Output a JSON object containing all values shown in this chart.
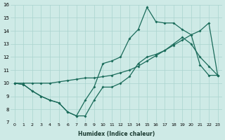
{
  "xlabel": "Humidex (Indice chaleur)",
  "background_color": "#ceeae6",
  "grid_color": "#aad4ce",
  "line_color": "#1a6b5a",
  "xlim": [
    -0.5,
    23.5
  ],
  "ylim": [
    7,
    16
  ],
  "xticks": [
    0,
    1,
    2,
    3,
    4,
    5,
    6,
    7,
    8,
    9,
    10,
    11,
    12,
    13,
    14,
    15,
    16,
    17,
    18,
    19,
    20,
    21,
    22,
    23
  ],
  "yticks": [
    7,
    8,
    9,
    10,
    11,
    12,
    13,
    14,
    15,
    16
  ],
  "line1_x": [
    0,
    1,
    2,
    3,
    4,
    5,
    6,
    7,
    8,
    9,
    10,
    11,
    12,
    13,
    14,
    15,
    16,
    17,
    18,
    19,
    20,
    21,
    22,
    23
  ],
  "line1_y": [
    10.0,
    9.9,
    9.4,
    9.0,
    8.7,
    8.5,
    7.8,
    7.5,
    7.5,
    8.7,
    9.7,
    9.7,
    10.0,
    10.5,
    11.5,
    12.0,
    12.2,
    12.5,
    13.0,
    13.5,
    13.0,
    12.0,
    11.3,
    10.6
  ],
  "line2_x": [
    0,
    1,
    2,
    3,
    4,
    5,
    6,
    7,
    8,
    9,
    10,
    11,
    12,
    13,
    14,
    15,
    16,
    17,
    18,
    19,
    20,
    21,
    22,
    23
  ],
  "line2_y": [
    10.0,
    10.0,
    10.0,
    10.0,
    10.0,
    10.1,
    10.2,
    10.3,
    10.4,
    10.4,
    10.5,
    10.6,
    10.8,
    11.0,
    11.3,
    11.7,
    12.1,
    12.5,
    12.9,
    13.3,
    13.7,
    14.0,
    14.6,
    10.6
  ],
  "line3_x": [
    0,
    1,
    2,
    3,
    4,
    5,
    6,
    7,
    8,
    9,
    10,
    11,
    12,
    13,
    14,
    15,
    16,
    17,
    18,
    19,
    20,
    21,
    22,
    23
  ],
  "line3_y": [
    10.0,
    9.9,
    9.4,
    9.0,
    8.7,
    8.5,
    7.8,
    7.5,
    8.7,
    9.7,
    11.5,
    11.7,
    12.0,
    13.4,
    14.1,
    15.8,
    14.7,
    14.6,
    14.6,
    14.1,
    13.7,
    11.4,
    10.6,
    10.6
  ]
}
